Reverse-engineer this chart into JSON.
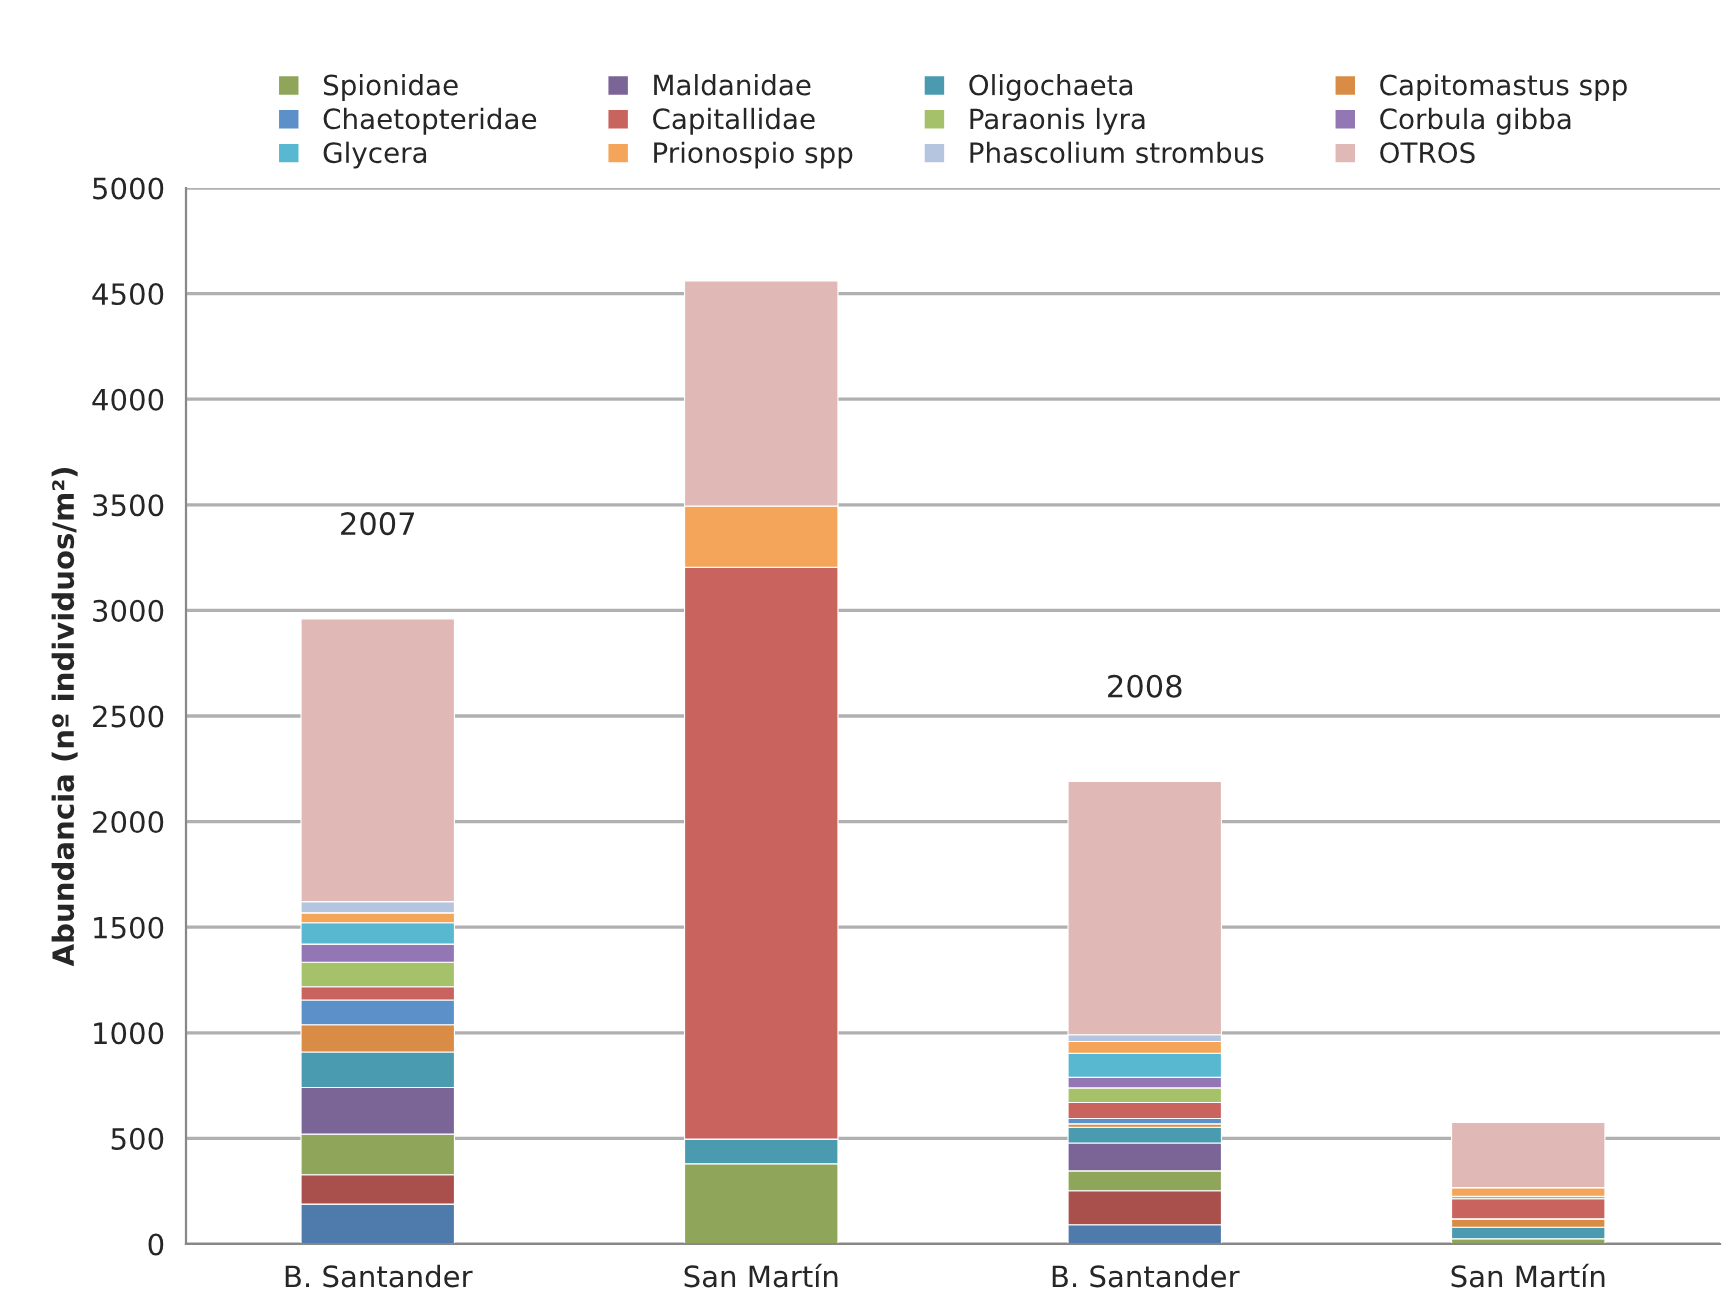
{
  "chart_data": {
    "type": "bar",
    "stacked": true,
    "ylabel": "Abundancia (nº individuos/m²)",
    "categories": [
      "B. Santander",
      "San Martín",
      "B. Santander",
      "San Martín"
    ],
    "series": [
      {
        "color": "#4f7bac",
        "values": [
          189,
          0,
          91,
          0
        ]
      },
      {
        "color": "#a9504d",
        "values": [
          139,
          0,
          161,
          0
        ]
      },
      {
        "name": "Spionidae",
        "color": "#8fa55a",
        "values": [
          192,
          380,
          94,
          25
        ]
      },
      {
        "name": "Maldanidae",
        "color": "#7b6496",
        "values": [
          221,
          0,
          132,
          0
        ]
      },
      {
        "name": "Oligochaeta",
        "color": "#4a9bb0",
        "values": [
          168,
          117,
          75,
          54
        ]
      },
      {
        "name": "Capitomastus spp",
        "color": "#d88c46",
        "values": [
          129,
          0,
          16,
          40
        ]
      },
      {
        "name": "Chaetopteridae",
        "color": "#5b90c9",
        "values": [
          117,
          0,
          25,
          0
        ]
      },
      {
        "name": "Capitallidae",
        "color": "#c9635d",
        "values": [
          63,
          2707,
          76,
          95
        ]
      },
      {
        "name": "Paraonis lyra",
        "color": "#a5c26b",
        "values": [
          116,
          0,
          69,
          12
        ]
      },
      {
        "name": "Corbula gibba",
        "color": "#9377b5",
        "values": [
          86,
          0,
          50,
          0
        ]
      },
      {
        "name": "Glycera",
        "color": "#58b8cf",
        "values": [
          101,
          0,
          114,
          0
        ]
      },
      {
        "name": "Prionospio spp",
        "color": "#f5a55a",
        "values": [
          47,
          290,
          56,
          41
        ]
      },
      {
        "name": "Phascolium strombus",
        "color": "#b5c5e0",
        "values": [
          53,
          0,
          32,
          0
        ]
      },
      {
        "name": "OTROS",
        "color": "#e0b9b7",
        "values": [
          1339,
          1066,
          1199,
          308
        ]
      }
    ],
    "ylim": [
      0,
      5000
    ],
    "yticks": [
      0,
      500,
      1000,
      1500,
      2000,
      2500,
      3000,
      3500,
      4000,
      4500,
      5000
    ],
    "grid": "y",
    "legend": "top",
    "annotations": [
      "2007",
      "2008"
    ]
  }
}
